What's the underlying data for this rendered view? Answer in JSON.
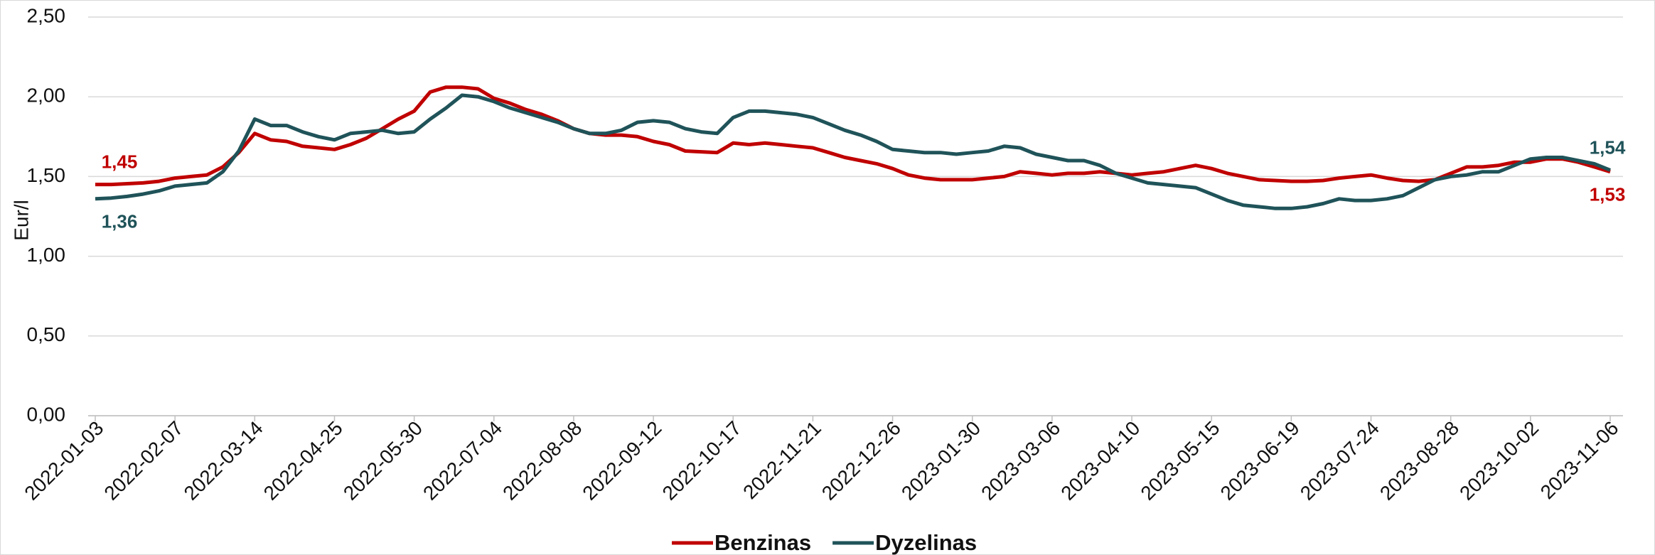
{
  "chart_data": {
    "type": "line",
    "y_label": "Eur/l",
    "categories": [
      "2022-01-03",
      null,
      null,
      null,
      null,
      "2022-02-07",
      null,
      null,
      null,
      null,
      "2022-03-14",
      null,
      null,
      null,
      null,
      "2022-04-25",
      null,
      null,
      null,
      null,
      "2022-05-30",
      null,
      null,
      null,
      null,
      "2022-07-04",
      null,
      null,
      null,
      null,
      "2022-08-08",
      null,
      null,
      null,
      null,
      "2022-09-12",
      null,
      null,
      null,
      null,
      "2022-10-17",
      null,
      null,
      null,
      null,
      "2022-11-21",
      null,
      null,
      null,
      null,
      "2022-12-26",
      null,
      null,
      null,
      null,
      "2023-01-30",
      null,
      null,
      null,
      null,
      "2023-03-06",
      null,
      null,
      null,
      null,
      "2023-04-10",
      null,
      null,
      null,
      null,
      "2023-05-15",
      null,
      null,
      null,
      null,
      "2023-06-19",
      null,
      null,
      null,
      null,
      "2023-07-24",
      null,
      null,
      null,
      null,
      "2023-08-28",
      null,
      null,
      null,
      null,
      "2023-10-02",
      null,
      null,
      null,
      null,
      "2023-11-06"
    ],
    "series": [
      {
        "name": "Benzinas",
        "color": "#c00000",
        "values": [
          1.45,
          1.45,
          1.455,
          1.46,
          1.47,
          1.49,
          1.5,
          1.51,
          1.56,
          1.65,
          1.77,
          1.73,
          1.72,
          1.69,
          1.68,
          1.67,
          1.7,
          1.74,
          1.8,
          1.86,
          1.91,
          2.03,
          2.06,
          2.06,
          2.05,
          1.99,
          1.96,
          1.92,
          1.89,
          1.85,
          1.8,
          1.77,
          1.76,
          1.76,
          1.75,
          1.72,
          1.7,
          1.66,
          1.655,
          1.65,
          1.71,
          1.7,
          1.71,
          1.7,
          1.69,
          1.68,
          1.65,
          1.62,
          1.6,
          1.58,
          1.55,
          1.51,
          1.49,
          1.48,
          1.48,
          1.48,
          1.49,
          1.5,
          1.53,
          1.52,
          1.51,
          1.52,
          1.52,
          1.53,
          1.52,
          1.51,
          1.52,
          1.53,
          1.55,
          1.57,
          1.55,
          1.52,
          1.5,
          1.48,
          1.475,
          1.47,
          1.47,
          1.475,
          1.49,
          1.5,
          1.51,
          1.49,
          1.475,
          1.47,
          1.48,
          1.52,
          1.56,
          1.56,
          1.57,
          1.59,
          1.59,
          1.61,
          1.61,
          1.59,
          1.56,
          1.53
        ],
        "value_labels": [
          "1,45",
          null,
          null,
          null,
          null,
          null,
          null,
          null,
          null,
          null,
          null,
          null,
          null,
          null,
          null,
          null,
          null,
          null,
          null,
          null,
          null,
          null,
          null,
          null,
          null,
          null,
          null,
          null,
          null,
          null,
          null,
          null,
          null,
          null,
          null,
          null,
          null,
          null,
          null,
          null,
          null,
          null,
          null,
          null,
          null,
          null,
          null,
          null,
          null,
          null,
          null,
          null,
          null,
          null,
          null,
          null,
          null,
          null,
          null,
          null,
          null,
          null,
          null,
          null,
          null,
          null,
          null,
          null,
          null,
          null,
          null,
          null,
          null,
          null,
          null,
          null,
          null,
          null,
          null,
          null,
          null,
          null,
          null,
          null,
          null,
          null,
          null,
          null,
          null,
          null,
          null,
          null,
          null,
          null,
          null,
          "1,53"
        ]
      },
      {
        "name": "Dyzelinas",
        "color": "#1f5359",
        "values": [
          1.36,
          1.365,
          1.375,
          1.39,
          1.41,
          1.44,
          1.45,
          1.46,
          1.53,
          1.66,
          1.86,
          1.82,
          1.82,
          1.78,
          1.75,
          1.73,
          1.77,
          1.78,
          1.79,
          1.77,
          1.78,
          1.86,
          1.93,
          2.01,
          2.0,
          1.97,
          1.93,
          1.9,
          1.87,
          1.84,
          1.8,
          1.77,
          1.77,
          1.79,
          1.84,
          1.85,
          1.84,
          1.8,
          1.78,
          1.77,
          1.87,
          1.91,
          1.91,
          1.9,
          1.89,
          1.87,
          1.83,
          1.79,
          1.76,
          1.72,
          1.67,
          1.66,
          1.65,
          1.65,
          1.64,
          1.65,
          1.66,
          1.69,
          1.68,
          1.64,
          1.62,
          1.6,
          1.6,
          1.57,
          1.52,
          1.49,
          1.46,
          1.45,
          1.44,
          1.43,
          1.39,
          1.35,
          1.32,
          1.31,
          1.3,
          1.3,
          1.31,
          1.33,
          1.36,
          1.35,
          1.35,
          1.36,
          1.38,
          1.43,
          1.48,
          1.5,
          1.51,
          1.53,
          1.53,
          1.57,
          1.61,
          1.62,
          1.62,
          1.6,
          1.58,
          1.54
        ],
        "value_labels": [
          "1,36",
          null,
          null,
          null,
          null,
          null,
          null,
          null,
          null,
          null,
          null,
          null,
          null,
          null,
          null,
          null,
          null,
          null,
          null,
          null,
          null,
          null,
          null,
          null,
          null,
          null,
          null,
          null,
          null,
          null,
          null,
          null,
          null,
          null,
          null,
          null,
          null,
          null,
          null,
          null,
          null,
          null,
          null,
          null,
          null,
          null,
          null,
          null,
          null,
          null,
          null,
          null,
          null,
          null,
          null,
          null,
          null,
          null,
          null,
          null,
          null,
          null,
          null,
          null,
          null,
          null,
          null,
          null,
          null,
          null,
          null,
          null,
          null,
          null,
          null,
          null,
          null,
          null,
          null,
          null,
          null,
          null,
          null,
          null,
          null,
          null,
          null,
          null,
          null,
          null,
          null,
          null,
          null,
          null,
          null,
          "1,54"
        ]
      }
    ],
    "ylim": [
      0,
      2.5
    ],
    "yticks": [
      {
        "value": 0,
        "label": "0,00"
      },
      {
        "value": 0.5,
        "label": "0,50"
      },
      {
        "value": 1,
        "label": "1,00"
      },
      {
        "value": 1.5,
        "label": "1,50"
      },
      {
        "value": 2,
        "label": "2,00"
      },
      {
        "value": 2.5,
        "label": "2,50"
      }
    ],
    "grid": true,
    "legend": "bottom"
  }
}
